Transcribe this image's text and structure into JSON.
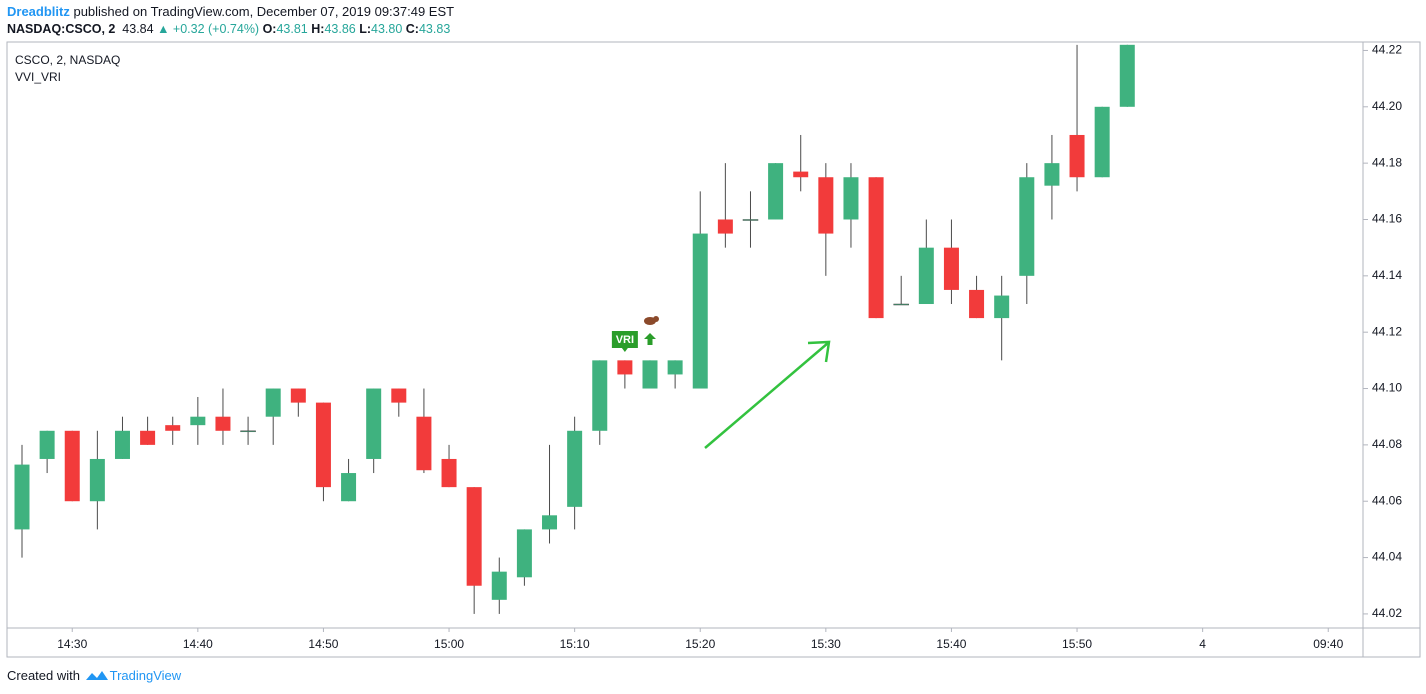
{
  "header": {
    "author": "Dreadblitz",
    "published": "published on TradingView.com, December 07, 2019 09:37:49 EST",
    "symbol": "NASDAQ:CSCO, 2",
    "last": "43.84",
    "change": "+0.32 (+0.74%)",
    "open_label": "O:",
    "open": "43.81",
    "high_label": "H:",
    "high": "43.86",
    "low_label": "L:",
    "low": "43.80",
    "close_label": "C:",
    "close": "43.83"
  },
  "footer": {
    "created": "Created with",
    "brand": "TradingView"
  },
  "chart_data": {
    "type": "candlestick",
    "title": "CSCO, 2, NASDAQ",
    "subtitle": "VVI_VRI",
    "x": [
      "14:26",
      "14:28",
      "14:30",
      "14:32",
      "14:34",
      "14:36",
      "14:38",
      "14:40",
      "14:42",
      "14:44",
      "14:46",
      "14:48",
      "14:50",
      "14:52",
      "14:54",
      "14:56",
      "14:58",
      "15:00",
      "15:02",
      "15:04",
      "15:06",
      "15:08",
      "15:10",
      "15:12",
      "15:14",
      "15:16",
      "15:18",
      "15:20",
      "15:22",
      "15:24",
      "15:26",
      "15:28",
      "15:30",
      "15:32",
      "15:34",
      "15:36",
      "15:38",
      "15:40",
      "15:42",
      "15:44",
      "15:46",
      "15:48",
      "15:50",
      "15:52",
      "15:54"
    ],
    "open": [
      44.05,
      44.075,
      44.085,
      44.06,
      44.075,
      44.085,
      44.087,
      44.087,
      44.09,
      44.085,
      44.09,
      44.1,
      44.095,
      44.06,
      44.075,
      44.1,
      44.09,
      44.075,
      44.065,
      44.025,
      44.033,
      44.05,
      44.058,
      44.085,
      44.11,
      44.1,
      44.105,
      44.1,
      44.16,
      44.16,
      44.16,
      44.177,
      44.175,
      44.16,
      44.175,
      44.13,
      44.13,
      44.15,
      44.135,
      44.125,
      44.14,
      44.172,
      44.19,
      44.175,
      44.2
    ],
    "high": [
      44.08,
      44.085,
      44.085,
      44.085,
      44.09,
      44.09,
      44.09,
      44.097,
      44.1,
      44.09,
      44.1,
      44.1,
      44.095,
      44.075,
      44.1,
      44.1,
      44.1,
      44.08,
      44.065,
      44.04,
      44.05,
      44.08,
      44.09,
      44.11,
      44.11,
      44.11,
      44.11,
      44.17,
      44.18,
      44.17,
      44.18,
      44.19,
      44.18,
      44.18,
      44.175,
      44.14,
      44.16,
      44.16,
      44.14,
      44.14,
      44.18,
      44.19,
      44.222,
      44.2,
      44.222
    ],
    "low": [
      44.04,
      44.07,
      44.06,
      44.05,
      44.075,
      44.08,
      44.08,
      44.08,
      44.08,
      44.08,
      44.08,
      44.09,
      44.06,
      44.06,
      44.07,
      44.09,
      44.07,
      44.065,
      44.02,
      44.02,
      44.03,
      44.045,
      44.05,
      44.08,
      44.1,
      44.1,
      44.1,
      44.1,
      44.15,
      44.15,
      44.16,
      44.17,
      44.14,
      44.15,
      44.125,
      44.13,
      44.13,
      44.13,
      44.125,
      44.11,
      44.13,
      44.16,
      44.17,
      44.175,
      44.2
    ],
    "close": [
      44.073,
      44.085,
      44.06,
      44.075,
      44.085,
      44.08,
      44.085,
      44.09,
      44.085,
      44.085,
      44.1,
      44.095,
      44.065,
      44.07,
      44.1,
      44.095,
      44.071,
      44.065,
      44.03,
      44.035,
      44.05,
      44.055,
      44.085,
      44.11,
      44.105,
      44.11,
      44.11,
      44.155,
      44.155,
      44.16,
      44.18,
      44.175,
      44.155,
      44.175,
      44.125,
      44.13,
      44.15,
      44.135,
      44.125,
      44.133,
      44.175,
      44.18,
      44.175,
      44.2,
      44.222
    ],
    "up_color": "#3fb27f",
    "down_color": "#f23b3b",
    "ylim": [
      44.015,
      44.223
    ],
    "yticks": [
      44.22,
      {
        "value": 44.2,
        "label": "44.20"
      },
      44.18,
      44.16,
      44.14,
      44.12,
      {
        "value": 44.1,
        "label": "44.10"
      },
      44.08,
      44.06,
      44.04,
      44.02
    ],
    "xtick_labels": [
      "14:30",
      "14:40",
      "14:50",
      "15:00",
      "15:10",
      "15:20",
      "15:30",
      "15:40",
      "15:50",
      "4",
      "09:40"
    ],
    "grid": false,
    "annotations": [
      {
        "text": "VRI",
        "x": "15:14"
      }
    ]
  }
}
